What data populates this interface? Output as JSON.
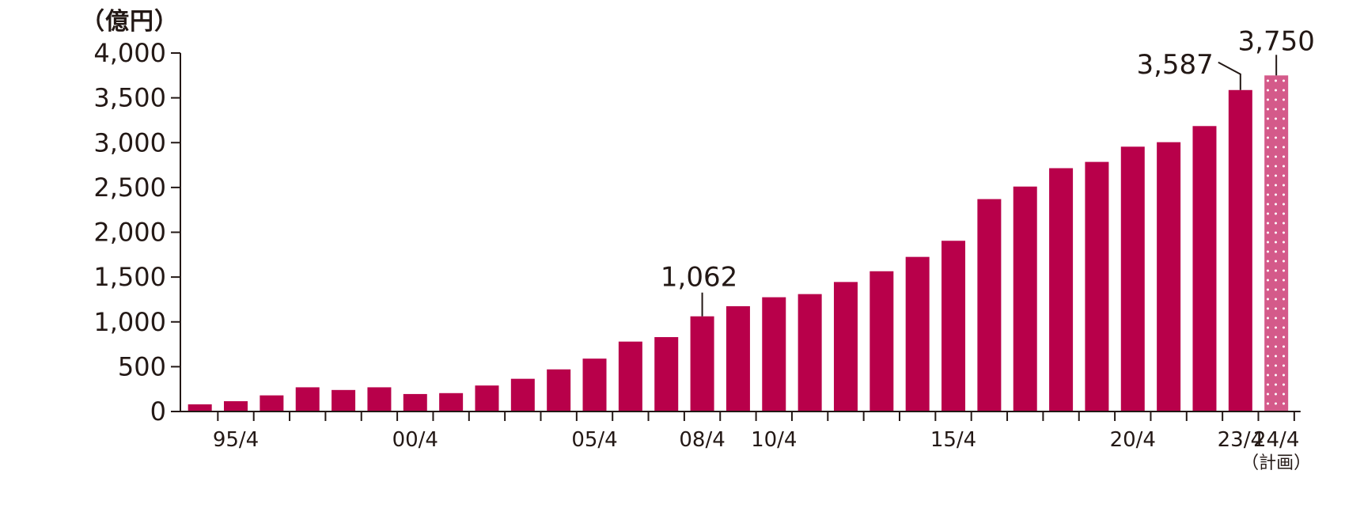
{
  "chart_data": {
    "type": "bar",
    "unit_label": "（億円）",
    "categories": [
      "94/4",
      "95/4",
      "96/4",
      "97/4",
      "98/4",
      "99/4",
      "00/4",
      "01/4",
      "02/4",
      "03/4",
      "04/4",
      "05/4",
      "06/4",
      "07/4",
      "08/4",
      "09/4",
      "10/4",
      "11/4",
      "12/4",
      "13/4",
      "14/4",
      "15/4",
      "16/4",
      "17/4",
      "18/4",
      "19/4",
      "20/4",
      "21/4",
      "22/4",
      "23/4",
      "24/4"
    ],
    "values": [
      80,
      115,
      180,
      270,
      240,
      270,
      195,
      205,
      290,
      365,
      470,
      590,
      780,
      830,
      1062,
      1175,
      1275,
      1310,
      1445,
      1565,
      1725,
      1905,
      2370,
      2510,
      2715,
      2785,
      2955,
      3005,
      3185,
      3587,
      3750
    ],
    "plan_index": 30,
    "ylim": [
      0,
      4000
    ],
    "yticks": [
      "0",
      "500",
      "1,000",
      "1,500",
      "2,000",
      "2,500",
      "3,000",
      "3,500",
      "4,000"
    ],
    "xtick_labels": [
      {
        "index": 1,
        "text": "95/4"
      },
      {
        "index": 6,
        "text": "00/4"
      },
      {
        "index": 11,
        "text": "05/4"
      },
      {
        "index": 14,
        "text": "08/4"
      },
      {
        "index": 16,
        "text": "10/4"
      },
      {
        "index": 21,
        "text": "15/4"
      },
      {
        "index": 26,
        "text": "20/4"
      },
      {
        "index": 29,
        "text": "23/4"
      },
      {
        "index": 30,
        "text": "24/4",
        "subtext": "（計画）"
      }
    ],
    "annotations": [
      {
        "index": 14,
        "text": "1,062"
      },
      {
        "index": 29,
        "text": "3,587"
      },
      {
        "index": 30,
        "text": "3,750"
      }
    ],
    "colors": {
      "bar": "#b8004a",
      "plan_bar": "#d45a8a",
      "axis": "#231815",
      "text": "#231815"
    }
  }
}
